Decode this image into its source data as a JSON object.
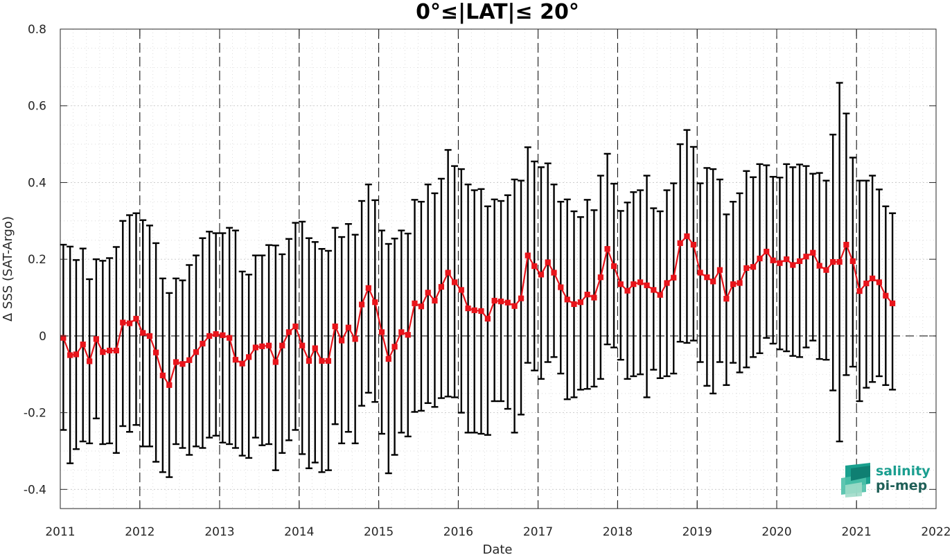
{
  "chart_data": {
    "type": "line",
    "title": "0°≤|LAT|≤ 20°",
    "xlabel": "Date",
    "ylabel": "Δ SSS (SAT-Argo)",
    "xlim": [
      "2011-01-01",
      "2022-01-01"
    ],
    "ylim": [
      -0.45,
      0.8
    ],
    "x_ticks": [
      "2011",
      "2012",
      "2013",
      "2014",
      "2015",
      "2016",
      "2017",
      "2018",
      "2019",
      "2020",
      "2021",
      "2022"
    ],
    "y_ticks": [
      "-0.4",
      "-0.2",
      "0",
      "0.2",
      "0.4",
      "0.6",
      "0.8"
    ],
    "grid": true,
    "colors": {
      "series": "#e8141b",
      "errorbars": "#000000",
      "year_lines": "#000000"
    },
    "series": [
      {
        "x": [
          "2011-01",
          "2011-02",
          "2011-03",
          "2011-04",
          "2011-05",
          "2011-06",
          "2011-07",
          "2011-08",
          "2011-09",
          "2011-10",
          "2011-11",
          "2011-12",
          "2012-01",
          "2012-02",
          "2012-03",
          "2012-04",
          "2012-05",
          "2012-06",
          "2012-07",
          "2012-08",
          "2012-09",
          "2012-10",
          "2012-11",
          "2012-12",
          "2013-01",
          "2013-02",
          "2013-03",
          "2013-04",
          "2013-05",
          "2013-06",
          "2013-07",
          "2013-08",
          "2013-09",
          "2013-10",
          "2013-11",
          "2013-12",
          "2014-01",
          "2014-02",
          "2014-03",
          "2014-04",
          "2014-05",
          "2014-06",
          "2014-07",
          "2014-08",
          "2014-09",
          "2014-10",
          "2014-11",
          "2014-12",
          "2015-01",
          "2015-02",
          "2015-03",
          "2015-04",
          "2015-05",
          "2015-06",
          "2015-07",
          "2015-08",
          "2015-09",
          "2015-10",
          "2015-11",
          "2015-12",
          "2016-01",
          "2016-02",
          "2016-03",
          "2016-04",
          "2016-05",
          "2016-06",
          "2016-07",
          "2016-08",
          "2016-09",
          "2016-10",
          "2016-11",
          "2016-12",
          "2017-01",
          "2017-02",
          "2017-03",
          "2017-04",
          "2017-05",
          "2017-06",
          "2017-07",
          "2017-08",
          "2017-09",
          "2017-10",
          "2017-11",
          "2017-12",
          "2018-01",
          "2018-02",
          "2018-03",
          "2018-04",
          "2018-05",
          "2018-06",
          "2018-07",
          "2018-08",
          "2018-09",
          "2018-10",
          "2018-11",
          "2018-12",
          "2019-01",
          "2019-02",
          "2019-03",
          "2019-04",
          "2019-05",
          "2019-06",
          "2019-07",
          "2019-08",
          "2019-09",
          "2019-10",
          "2019-11",
          "2019-12",
          "2020-01",
          "2020-02",
          "2020-03",
          "2020-04",
          "2020-05",
          "2020-06",
          "2020-07",
          "2020-08",
          "2020-09",
          "2020-10",
          "2020-11",
          "2020-12",
          "2021-01",
          "2021-02",
          "2021-03",
          "2021-04",
          "2021-05",
          "2021-06"
        ],
        "y": [
          -0.005,
          -0.05,
          -0.048,
          -0.022,
          -0.066,
          -0.008,
          -0.042,
          -0.038,
          -0.038,
          0.035,
          0.033,
          0.045,
          0.008,
          0.0,
          -0.043,
          -0.103,
          -0.128,
          -0.068,
          -0.073,
          -0.063,
          -0.042,
          -0.02,
          0.0,
          0.005,
          0.002,
          -0.005,
          -0.062,
          -0.072,
          -0.055,
          -0.03,
          -0.027,
          -0.025,
          -0.068,
          -0.025,
          0.01,
          0.025,
          -0.025,
          -0.065,
          -0.032,
          -0.065,
          -0.065,
          0.025,
          -0.012,
          0.022,
          -0.008,
          0.082,
          0.125,
          0.088,
          0.01,
          -0.06,
          -0.028,
          0.01,
          0.003,
          0.085,
          0.077,
          0.113,
          0.092,
          0.128,
          0.165,
          0.14,
          0.12,
          0.072,
          0.067,
          0.065,
          0.045,
          0.092,
          0.09,
          0.087,
          0.078,
          0.098,
          0.21,
          0.182,
          0.16,
          0.192,
          0.165,
          0.127,
          0.095,
          0.083,
          0.088,
          0.108,
          0.1,
          0.153,
          0.227,
          0.182,
          0.135,
          0.118,
          0.135,
          0.14,
          0.132,
          0.12,
          0.107,
          0.138,
          0.152,
          0.242,
          0.26,
          0.238,
          0.165,
          0.153,
          0.142,
          0.172,
          0.097,
          0.135,
          0.138,
          0.177,
          0.18,
          0.202,
          0.22,
          0.197,
          0.19,
          0.2,
          0.185,
          0.195,
          0.207,
          0.217,
          0.183,
          0.172,
          0.193,
          0.193,
          0.238,
          0.195,
          0.117,
          0.137,
          0.15,
          0.14,
          0.105,
          0.085
        ],
        "err_upper": [
          0.238,
          0.233,
          0.198,
          0.228,
          0.148,
          0.2,
          0.196,
          0.203,
          0.232,
          0.3,
          0.315,
          0.32,
          0.302,
          0.288,
          0.242,
          0.15,
          0.112,
          0.15,
          0.145,
          0.185,
          0.21,
          0.255,
          0.272,
          0.268,
          0.268,
          0.282,
          0.275,
          0.168,
          0.16,
          0.21,
          0.21,
          0.237,
          0.236,
          0.213,
          0.253,
          0.295,
          0.298,
          0.255,
          0.245,
          0.227,
          0.222,
          0.282,
          0.258,
          0.292,
          0.264,
          0.352,
          0.395,
          0.354,
          0.275,
          0.24,
          0.254,
          0.275,
          0.267,
          0.355,
          0.35,
          0.395,
          0.372,
          0.41,
          0.485,
          0.443,
          0.435,
          0.395,
          0.38,
          0.383,
          0.338,
          0.356,
          0.352,
          0.367,
          0.408,
          0.405,
          0.492,
          0.455,
          0.44,
          0.45,
          0.395,
          0.35,
          0.356,
          0.325,
          0.31,
          0.355,
          0.328,
          0.418,
          0.475,
          0.397,
          0.326,
          0.348,
          0.375,
          0.38,
          0.418,
          0.333,
          0.325,
          0.38,
          0.398,
          0.5,
          0.537,
          0.493,
          0.398,
          0.438,
          0.435,
          0.408,
          0.317,
          0.35,
          0.372,
          0.43,
          0.414,
          0.448,
          0.445,
          0.415,
          0.413,
          0.448,
          0.44,
          0.447,
          0.443,
          0.423,
          0.425,
          0.405,
          0.525,
          0.66,
          0.58,
          0.465,
          0.405,
          0.405,
          0.418,
          0.382,
          0.338,
          0.32
        ],
        "err_lower": [
          -0.245,
          -0.332,
          -0.295,
          -0.275,
          -0.28,
          -0.215,
          -0.282,
          -0.28,
          -0.305,
          -0.235,
          -0.25,
          -0.232,
          -0.288,
          -0.288,
          -0.328,
          -0.355,
          -0.368,
          -0.282,
          -0.292,
          -0.31,
          -0.288,
          -0.292,
          -0.265,
          -0.26,
          -0.278,
          -0.282,
          -0.292,
          -0.312,
          -0.318,
          -0.265,
          -0.285,
          -0.282,
          -0.35,
          -0.305,
          -0.272,
          -0.245,
          -0.308,
          -0.345,
          -0.33,
          -0.355,
          -0.35,
          -0.23,
          -0.28,
          -0.25,
          -0.28,
          -0.182,
          -0.148,
          -0.172,
          -0.255,
          -0.358,
          -0.31,
          -0.252,
          -0.262,
          -0.198,
          -0.195,
          -0.175,
          -0.185,
          -0.162,
          -0.158,
          -0.16,
          -0.2,
          -0.252,
          -0.252,
          -0.255,
          -0.258,
          -0.17,
          -0.17,
          -0.19,
          -0.252,
          -0.205,
          -0.07,
          -0.09,
          -0.112,
          -0.068,
          -0.055,
          -0.098,
          -0.165,
          -0.16,
          -0.14,
          -0.138,
          -0.132,
          -0.112,
          -0.022,
          -0.03,
          -0.062,
          -0.112,
          -0.105,
          -0.1,
          -0.16,
          -0.088,
          -0.11,
          -0.105,
          -0.098,
          -0.015,
          -0.018,
          -0.012,
          -0.068,
          -0.13,
          -0.15,
          -0.068,
          -0.128,
          -0.07,
          -0.095,
          -0.082,
          -0.055,
          -0.045,
          -0.005,
          -0.02,
          -0.035,
          -0.04,
          -0.052,
          -0.055,
          -0.03,
          -0.012,
          -0.06,
          -0.062,
          -0.142,
          -0.275,
          -0.102,
          -0.08,
          -0.17,
          -0.135,
          -0.12,
          -0.105,
          -0.128,
          -0.14
        ]
      }
    ]
  },
  "logo": {
    "line1": "salinity",
    "line2": "pi-mep",
    "color": "#1a9e8f"
  }
}
